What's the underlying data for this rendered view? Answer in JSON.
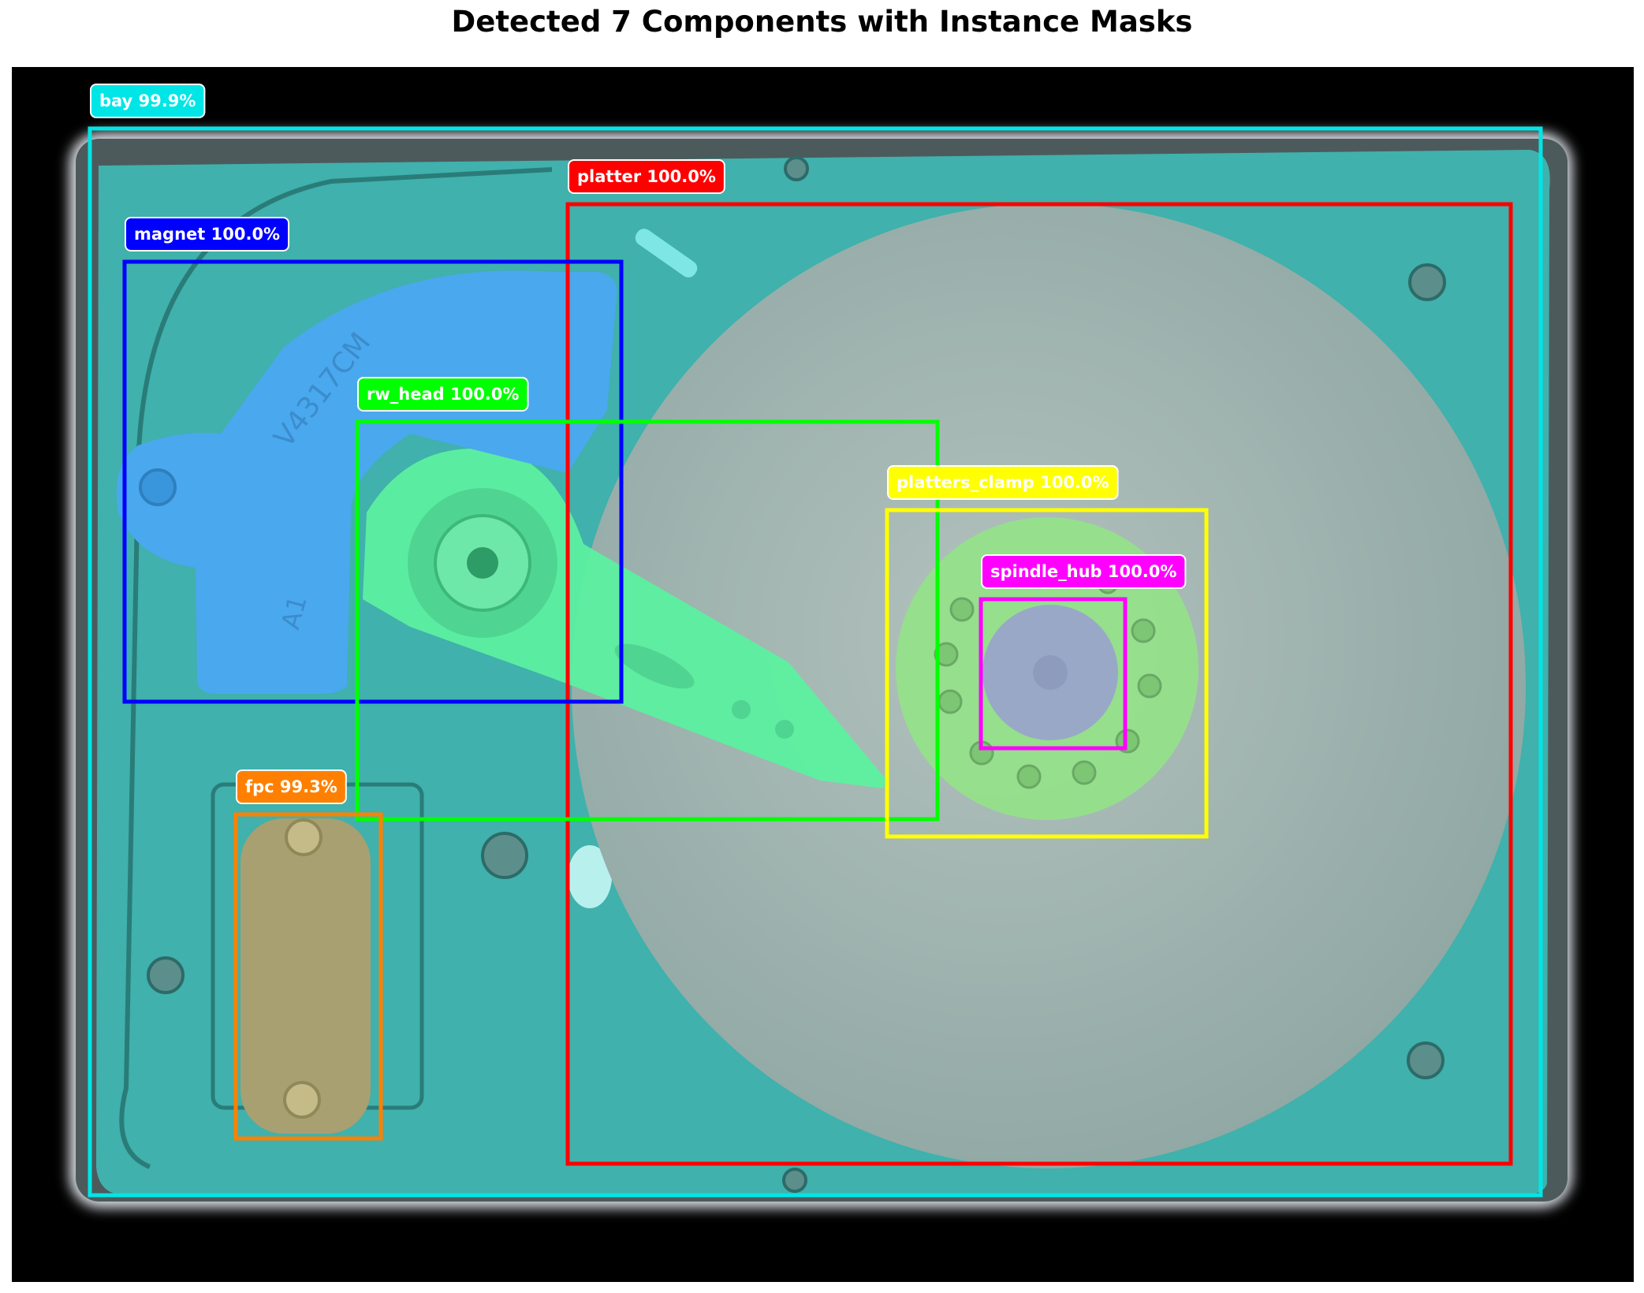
{
  "title": "Detected 7 Components with Instance Masks",
  "image": {
    "subject": "hard-disk-drive-top-view",
    "engraving": "V4317CM",
    "engraving_2": "A1"
  },
  "detections": [
    {
      "label": "bay 99.9%",
      "class": "bay",
      "score": "99.9%",
      "color": "#00e6e6"
    },
    {
      "label": "platter 100.0%",
      "class": "platter",
      "score": "100.0%",
      "color": "#ff0000"
    },
    {
      "label": "magnet 100.0%",
      "class": "magnet",
      "score": "100.0%",
      "color": "#0000ff"
    },
    {
      "label": "rw_head 100.0%",
      "class": "rw_head",
      "score": "100.0%",
      "color": "#00ff00"
    },
    {
      "label": "platters_clamp 100.0%",
      "class": "platters_clamp",
      "score": "100.0%",
      "color": "#ffff00"
    },
    {
      "label": "spindle_hub 100.0%",
      "class": "spindle_hub",
      "score": "100.0%",
      "color": "#ff00ff"
    },
    {
      "label": "fpc 99.3%",
      "class": "fpc",
      "score": "99.3%",
      "color": "#ff8000"
    }
  ],
  "mask_colors": {
    "bay": "#3fb8b3",
    "platter": "#a7b9b5",
    "magnet": "#4aa8ee",
    "rw_head": "#5cf0a0",
    "platters_clamp": "#94e08a",
    "spindle_hub": "#9aa8c8",
    "fpc": "#a8a070"
  }
}
